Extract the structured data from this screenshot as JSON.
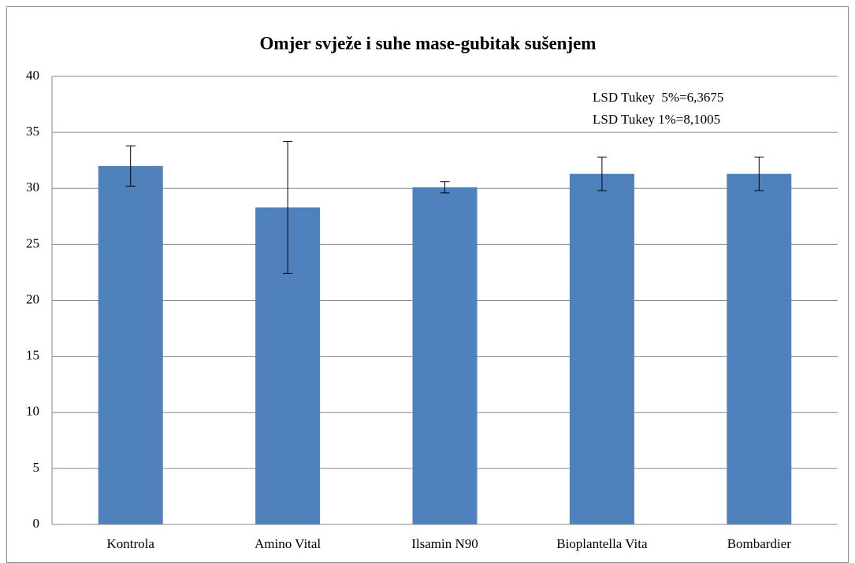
{
  "chart_data": {
    "type": "bar",
    "title": "Omjer svježe i suhe mase-gubitak sušenjem",
    "annotations": [
      "LSD Tukey  5%=6,3675",
      "LSD Tukey 1%=8,1005"
    ],
    "categories": [
      "Kontrola",
      "Amino Vital",
      "Ilsamin N90",
      "Bioplantella Vita",
      "Bombardier"
    ],
    "values": [
      32.0,
      28.3,
      30.1,
      31.3,
      31.3
    ],
    "errors": [
      1.8,
      5.9,
      0.5,
      1.5,
      1.5
    ],
    "color": "#4f81bd",
    "ylim": [
      0,
      40
    ],
    "yticks": [
      0,
      5,
      10,
      15,
      20,
      25,
      30,
      35,
      40
    ],
    "grid": true
  }
}
